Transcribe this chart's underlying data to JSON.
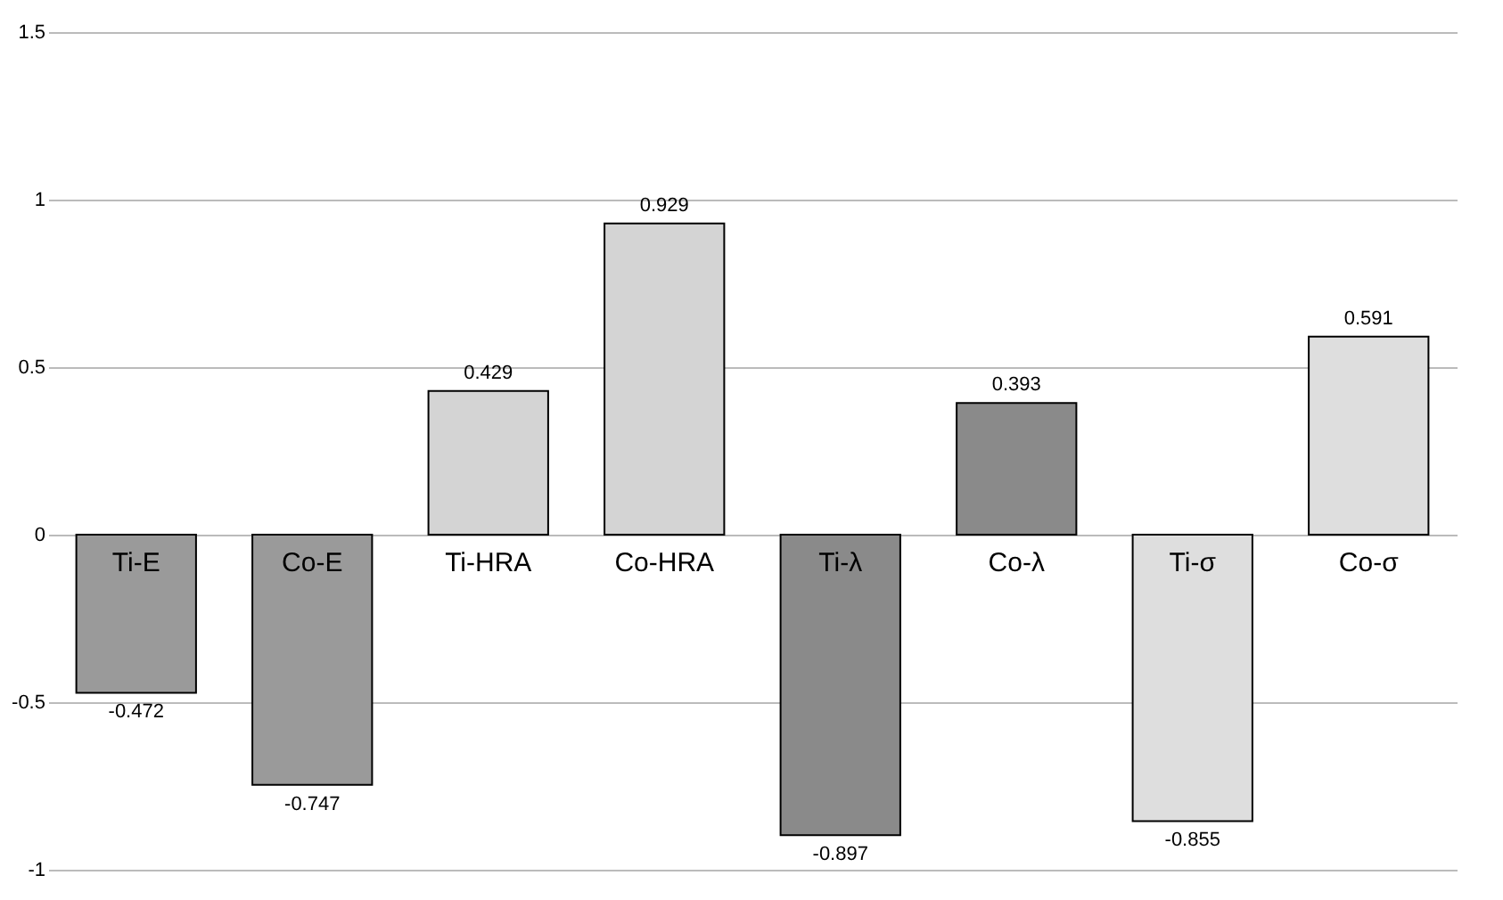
{
  "chart_data": {
    "type": "bar",
    "categories": [
      "Ti-E",
      "Co-E",
      "Ti-HRA",
      "Co-HRA",
      "Ti-λ",
      "Co-λ",
      "Ti-σ",
      "Co-σ"
    ],
    "values": [
      -0.472,
      -0.747,
      0.429,
      0.929,
      -0.897,
      0.393,
      -0.855,
      0.591
    ],
    "colors": [
      "#9a9a9a",
      "#9a9a9a",
      "#d4d4d4",
      "#d4d4d4",
      "#8a8a8a",
      "#8a8a8a",
      "#dedede",
      "#dedede"
    ],
    "data_labels": true,
    "ylim": [
      -1,
      1.5
    ],
    "yticks": [
      -1,
      -0.5,
      0,
      0.5,
      1,
      1.5
    ],
    "grid": "y"
  }
}
